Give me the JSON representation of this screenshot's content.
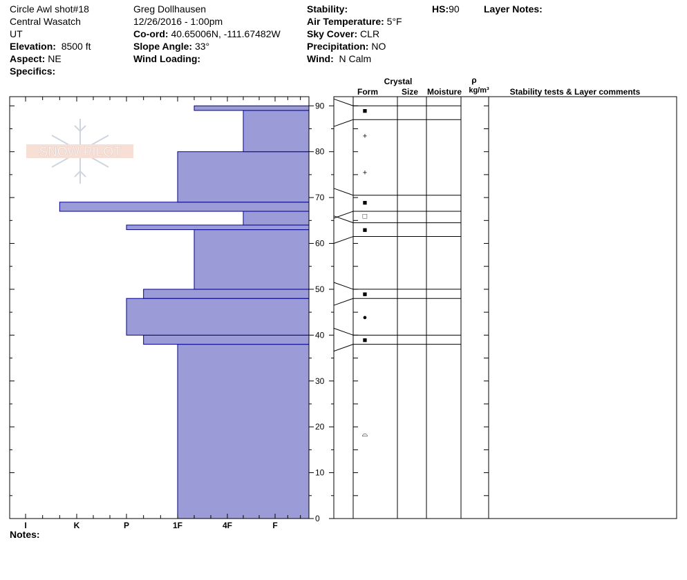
{
  "header": {
    "col1": {
      "site": "Circle Awl shot#18",
      "range": "Central Wasatch",
      "state": "UT",
      "elevation_label": "Elevation:",
      "elevation_value": "8500 ft",
      "aspect_label": "Aspect:",
      "aspect_value": "NE",
      "specifics_label": "Specifics:"
    },
    "col2": {
      "observer": "Greg Dollhausen",
      "datetime": "12/26/2016 - 1:00pm",
      "coord_label": "Co-ord:",
      "coord_value": "40.65006N, -111.67482W",
      "slope_label": "Slope Angle:",
      "slope_value": "33°",
      "wind_loading_label": "Wind Loading:"
    },
    "col3": {
      "stability_label": "Stability:",
      "air_temp_label": "Air Temperature:",
      "air_temp_value": "5°F",
      "sky_label": "Sky Cover:",
      "sky_value": "CLR",
      "precip_label": "Precipitation:",
      "precip_value": "NO",
      "wind_label": "Wind:",
      "wind_value": "N Calm"
    },
    "hs_label": "HS:",
    "hs_value": "90",
    "layer_notes_label": "Layer Notes:"
  },
  "columns": {
    "crystal": "Crystal",
    "form": "Form",
    "size": "Size",
    "moisture": "Moisture",
    "rho": "ρ",
    "density_unit": "kg/m³",
    "comments": "Stability tests & Layer comments"
  },
  "logo_text": "SNOW PILOT",
  "notes_label": "Notes:",
  "colors": {
    "bar_fill": "#9b9bd7",
    "bar_stroke": "#00008b"
  },
  "chart_data": {
    "type": "bar",
    "orientation": "horizontal",
    "y_axis": {
      "min": 0,
      "max": 92,
      "ticks": [
        0,
        10,
        20,
        30,
        40,
        50,
        60,
        70,
        80,
        90
      ]
    },
    "hardness_scale": [
      "I",
      "K",
      "P",
      "1F",
      "4F",
      "F"
    ],
    "layers": [
      {
        "bottom": 0,
        "top": 38,
        "hardness": "1F"
      },
      {
        "bottom": 38,
        "top": 40,
        "hardness": "P+"
      },
      {
        "bottom": 40,
        "top": 48,
        "hardness": "P"
      },
      {
        "bottom": 48,
        "top": 50,
        "hardness": "P+"
      },
      {
        "bottom": 50,
        "top": 63,
        "hardness": "1F+"
      },
      {
        "bottom": 63,
        "top": 64,
        "hardness": "P"
      },
      {
        "bottom": 64,
        "top": 67,
        "hardness": "4F+"
      },
      {
        "bottom": 67,
        "top": 69,
        "hardness": "K-"
      },
      {
        "bottom": 69,
        "top": 80,
        "hardness": "1F"
      },
      {
        "bottom": 80,
        "top": 89,
        "hardness": "4F+"
      },
      {
        "bottom": 89,
        "top": 90,
        "hardness": "1F+"
      }
    ],
    "boundaries": [
      38,
      40,
      48,
      50,
      61.5,
      64.5,
      67,
      70.5,
      87,
      90
    ],
    "crystal_forms": [
      {
        "depth": 89,
        "symbol": "■"
      },
      {
        "depth": 83.5,
        "symbol": "+"
      },
      {
        "depth": 75.5,
        "symbol": "+"
      },
      {
        "depth": 69,
        "symbol": "■"
      },
      {
        "depth": 66,
        "symbol": "□"
      },
      {
        "depth": 63,
        "symbol": "■"
      },
      {
        "depth": 49,
        "symbol": "■"
      },
      {
        "depth": 44,
        "symbol": "●"
      },
      {
        "depth": 39,
        "symbol": "■"
      },
      {
        "depth": 18.5,
        "symbol": "⌓"
      }
    ]
  }
}
